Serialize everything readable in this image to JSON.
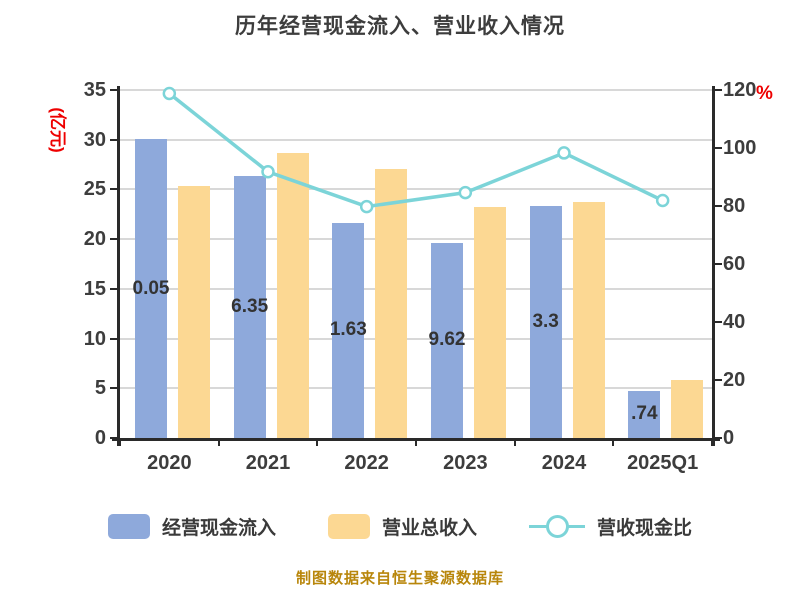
{
  "title": "历年经营现金流入、营业收入情况",
  "caption": "制图数据来自恒生聚源数据库",
  "colors": {
    "bar_blue": "#8EA9DB",
    "bar_yellow": "#FCD893",
    "line_teal": "#7CD4D8",
    "axis_unit_red": "#EE0000",
    "caption_gold": "#B8860B",
    "text_dark": "#3D3D3D",
    "grid_gray": "#D8D8D8",
    "axis_dark": "#2A2A2A"
  },
  "legend": [
    {
      "label": "经营现金流入",
      "marker": "blue-swatch"
    },
    {
      "label": "营业总收入",
      "marker": "yellow-swatch"
    },
    {
      "label": "营收现金比",
      "marker": "teal-line-dot"
    }
  ],
  "chart_data": {
    "type": "combo-bar-line",
    "categories": [
      "2020",
      "2021",
      "2022",
      "2023",
      "2024",
      "2025Q1"
    ],
    "series": [
      {
        "name": "经营现金流入",
        "type": "bar",
        "axis": "left",
        "values": [
          30.05,
          26.35,
          21.63,
          19.62,
          23.3,
          4.74
        ],
        "visible_labels": [
          "0.05",
          "6.35",
          "1.63",
          "9.62",
          "3.3",
          ".74"
        ]
      },
      {
        "name": "营业总收入",
        "type": "bar",
        "axis": "left",
        "values": [
          25.3,
          28.7,
          27.1,
          23.2,
          23.7,
          5.8
        ]
      },
      {
        "name": "营收现金比",
        "type": "line",
        "axis": "right",
        "values": [
          118.8,
          91.8,
          79.8,
          84.6,
          98.3,
          81.9
        ]
      }
    ],
    "left_axis": {
      "label": "(亿元)",
      "min": 0,
      "max": 35,
      "step": 5,
      "ticks": [
        0,
        5,
        10,
        15,
        20,
        25,
        30,
        35
      ]
    },
    "right_axis": {
      "label": "%",
      "min": 0,
      "max": 120,
      "step": 20,
      "ticks": [
        0,
        20,
        40,
        60,
        80,
        100,
        120
      ]
    },
    "grid": true,
    "legend_position": "bottom"
  }
}
